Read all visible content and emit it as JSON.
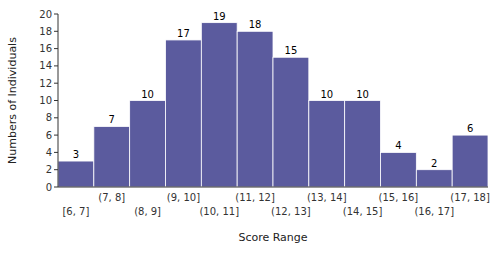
{
  "chart_data": {
    "type": "bar",
    "categories": [
      "[6, 7]",
      "(7, 8]",
      "(8, 9]",
      "(9, 10]",
      "(10, 11]",
      "(11, 12]",
      "(12, 13]",
      "(13, 14]",
      "(14, 15]",
      "(15, 16]",
      "(16, 17]",
      "(17, 18]"
    ],
    "values": [
      3,
      7,
      10,
      17,
      19,
      18,
      15,
      10,
      10,
      4,
      2,
      6
    ],
    "color": "#5b5b9e",
    "xlabel": "Score Range",
    "ylabel": "Numbers of Individuals",
    "ylim": [
      0,
      20
    ],
    "yticks": [
      0,
      2,
      4,
      6,
      8,
      10,
      12,
      14,
      16,
      18,
      20
    ],
    "data_labels": true,
    "grid": false
  }
}
